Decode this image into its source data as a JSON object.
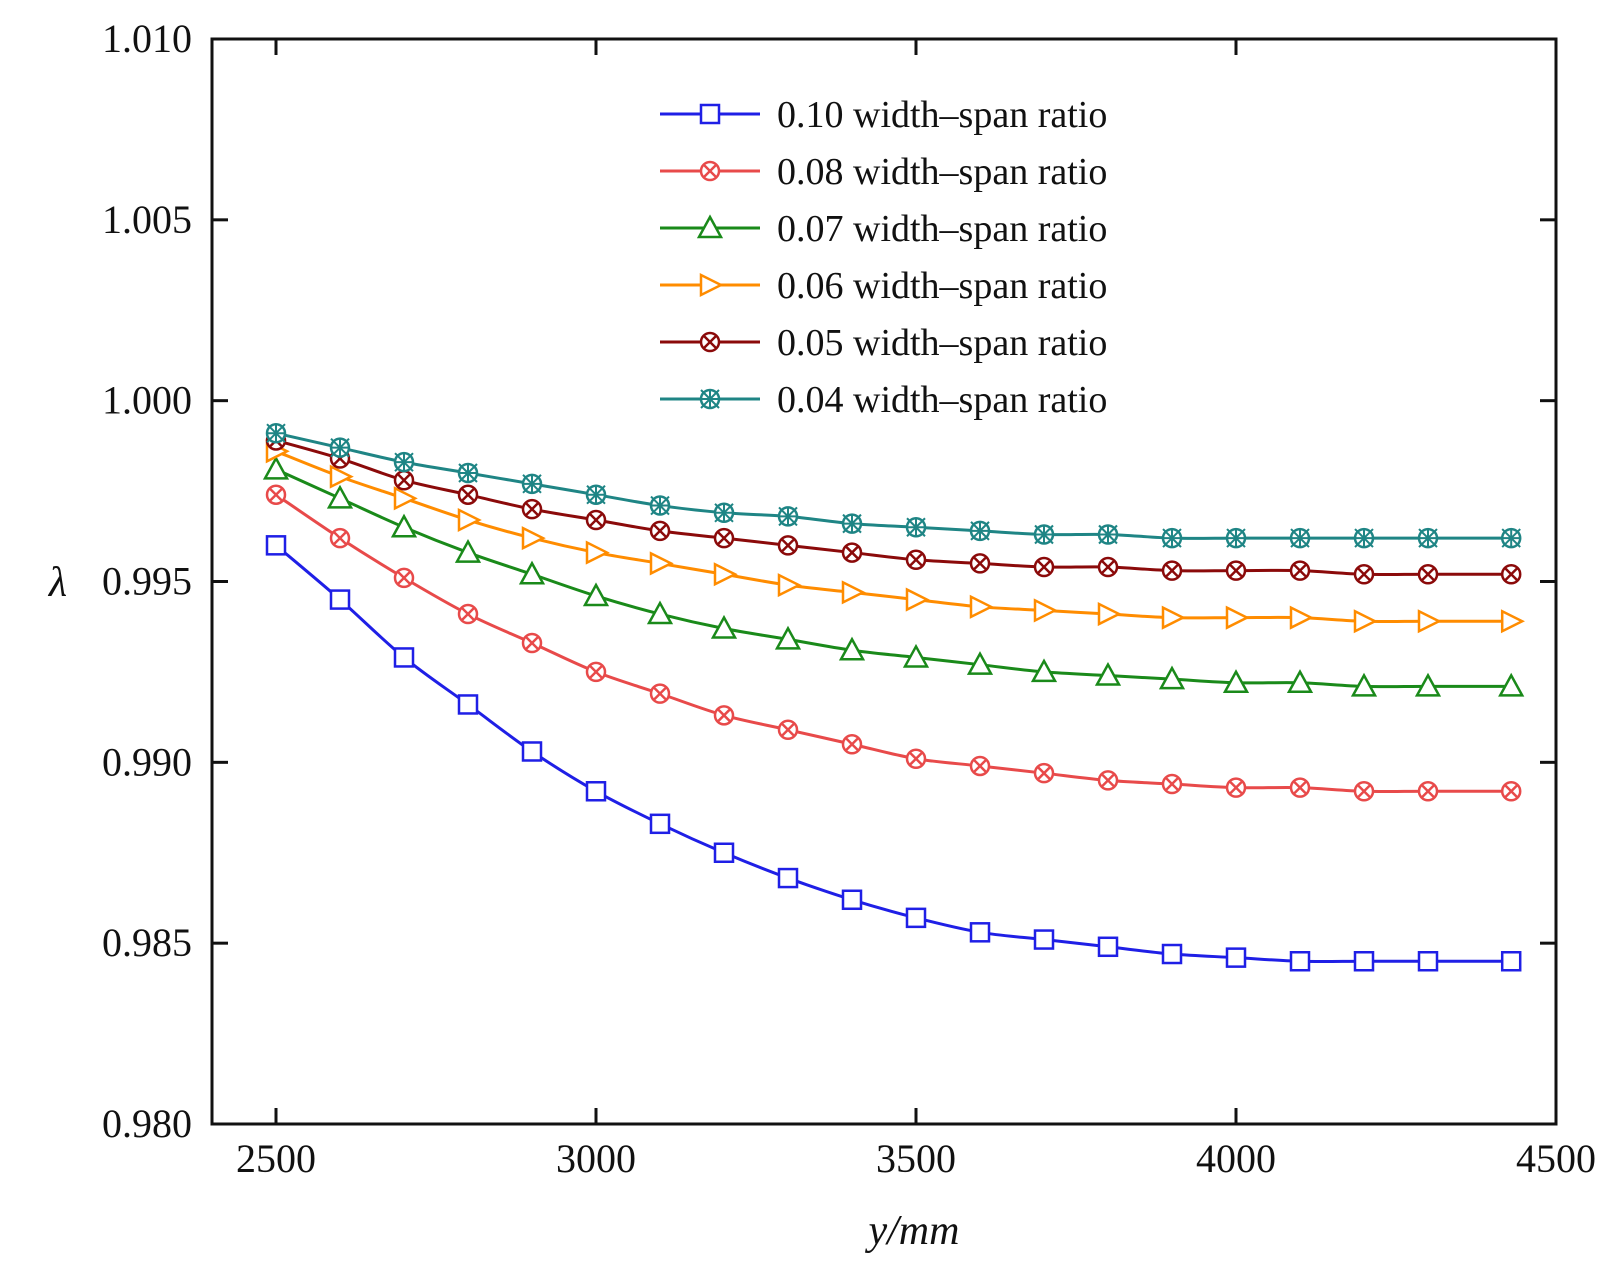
{
  "chart_data": {
    "type": "line",
    "title": "",
    "xlabel": "y/mm",
    "ylabel": "λ",
    "xlim": [
      2400,
      4500
    ],
    "ylim": [
      0.98,
      1.01
    ],
    "xticks": [
      2500,
      3000,
      3500,
      4000,
      4500
    ],
    "xtick_labels": [
      "2500",
      "3000",
      "3500",
      "4000",
      "4500"
    ],
    "yticks": [
      0.98,
      0.985,
      0.99,
      0.995,
      1.0,
      1.005,
      1.01
    ],
    "ytick_labels": [
      "0.980",
      "0.985",
      "0.990",
      "0.995",
      "1.000",
      "1.005",
      "1.010"
    ],
    "grid": false,
    "legend_position": "top-right",
    "x": [
      2500,
      2600,
      2700,
      2800,
      2900,
      3000,
      3100,
      3200,
      3300,
      3400,
      3500,
      3600,
      3700,
      3800,
      3900,
      4000,
      4100,
      4200,
      4300,
      4430
    ],
    "series": [
      {
        "name": "0.10 width–span ratio",
        "color": "#1f1fe6",
        "marker": "square",
        "values": [
          0.996,
          0.9945,
          0.9929,
          0.9916,
          0.9903,
          0.9892,
          0.9883,
          0.9875,
          0.9868,
          0.9862,
          0.9857,
          0.9853,
          0.9851,
          0.9849,
          0.9847,
          0.9846,
          0.9845,
          0.9845,
          0.9845,
          0.9845
        ]
      },
      {
        "name": "0.08 width–span ratio",
        "color": "#e84a4a",
        "marker": "circle-x",
        "values": [
          0.9974,
          0.9962,
          0.9951,
          0.9941,
          0.9933,
          0.9925,
          0.9919,
          0.9913,
          0.9909,
          0.9905,
          0.9901,
          0.9899,
          0.9897,
          0.9895,
          0.9894,
          0.9893,
          0.9893,
          0.9892,
          0.9892,
          0.9892
        ]
      },
      {
        "name": "0.07 width–span ratio",
        "color": "#1a8a1a",
        "marker": "triangle-up",
        "values": [
          0.9981,
          0.9973,
          0.9965,
          0.9958,
          0.9952,
          0.9946,
          0.9941,
          0.9937,
          0.9934,
          0.9931,
          0.9929,
          0.9927,
          0.9925,
          0.9924,
          0.9923,
          0.9922,
          0.9922,
          0.9921,
          0.9921,
          0.9921
        ]
      },
      {
        "name": "0.06 width–span ratio",
        "color": "#ff8c00",
        "marker": "triangle-right",
        "values": [
          0.9986,
          0.9979,
          0.9973,
          0.9967,
          0.9962,
          0.9958,
          0.9955,
          0.9952,
          0.9949,
          0.9947,
          0.9945,
          0.9943,
          0.9942,
          0.9941,
          0.994,
          0.994,
          0.994,
          0.9939,
          0.9939,
          0.9939
        ]
      },
      {
        "name": "0.05 width–span ratio",
        "color": "#8b0a0a",
        "marker": "circle-x",
        "values": [
          0.9989,
          0.9984,
          0.9978,
          0.9974,
          0.997,
          0.9967,
          0.9964,
          0.9962,
          0.996,
          0.9958,
          0.9956,
          0.9955,
          0.9954,
          0.9954,
          0.9953,
          0.9953,
          0.9953,
          0.9952,
          0.9952,
          0.9952
        ]
      },
      {
        "name": "0.04 width–span ratio",
        "color": "#1f8585",
        "marker": "star-x",
        "values": [
          0.9991,
          0.9987,
          0.9983,
          0.998,
          0.9977,
          0.9974,
          0.9971,
          0.9969,
          0.9968,
          0.9966,
          0.9965,
          0.9964,
          0.9963,
          0.9963,
          0.9962,
          0.9962,
          0.9962,
          0.9962,
          0.9962,
          0.9962
        ]
      }
    ]
  }
}
